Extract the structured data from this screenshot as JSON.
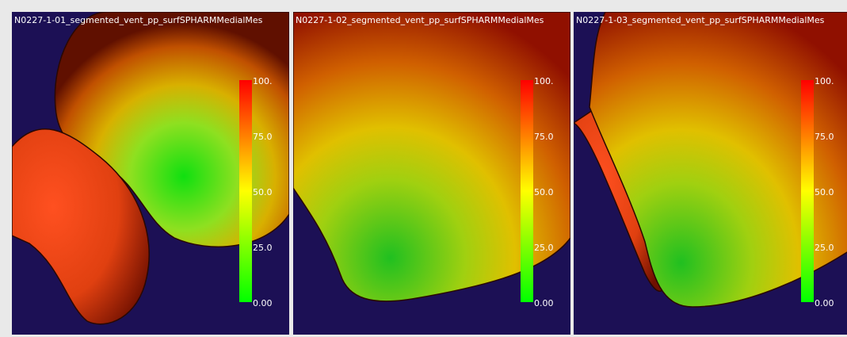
{
  "panels": [
    {
      "title": "N0227-1-01_segmented_vent_pp_surfSPHARMMedialMes",
      "colorbar_labels": [
        "100.",
        "75.0",
        "50.0",
        "25.0",
        "0.00"
      ]
    },
    {
      "title": "N0227-1-02_segmented_vent_pp_surfSPHARMMedialMes",
      "colorbar_labels": [
        "100.",
        "75.0",
        "50.0",
        "25.0",
        "0.00"
      ]
    },
    {
      "title": "N0227-1-03_segmented_vent_pp_surfSPHARMMedialMes",
      "colorbar_labels": [
        "100.",
        "75.0",
        "50.0",
        "25.0",
        "0.00"
      ]
    }
  ]
}
